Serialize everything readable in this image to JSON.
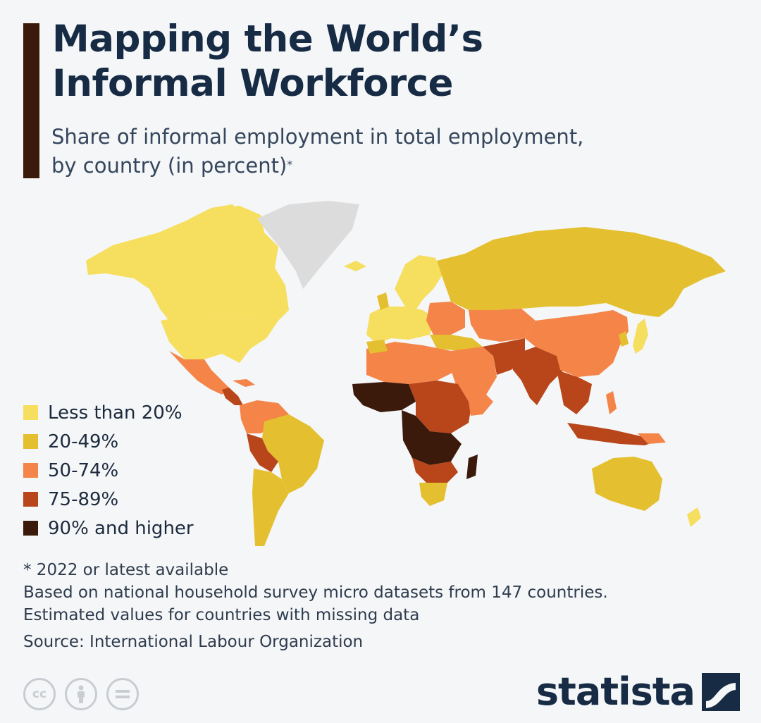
{
  "header": {
    "title_line1": "Mapping the World’s",
    "title_line2": "Informal Workforce",
    "subtitle_line1": "Share of informal employment in total employment,",
    "subtitle_line2": "by country (in percent)",
    "subtitle_marker": "*"
  },
  "legend": {
    "items": [
      {
        "label": "Less than 20%",
        "color": "#f6de5f"
      },
      {
        "label": "20-49%",
        "color": "#e4c030"
      },
      {
        "label": "50-74%",
        "color": "#f58448"
      },
      {
        "label": "75-89%",
        "color": "#b8461a"
      },
      {
        "label": "90% and higher",
        "color": "#3b1a0c"
      }
    ],
    "no_data_color": "#dcdcdc"
  },
  "notes": {
    "footnote": "* 2022 or latest available",
    "basis_line1": "Based on national household survey micro datasets from 147 countries.",
    "basis_line2": "Estimated values for countries with missing data",
    "source": "Source: International Labour Organization"
  },
  "footer": {
    "brand": "statista",
    "license_icons": [
      "cc-icon",
      "attribution-icon",
      "no-derivatives-icon"
    ]
  }
}
